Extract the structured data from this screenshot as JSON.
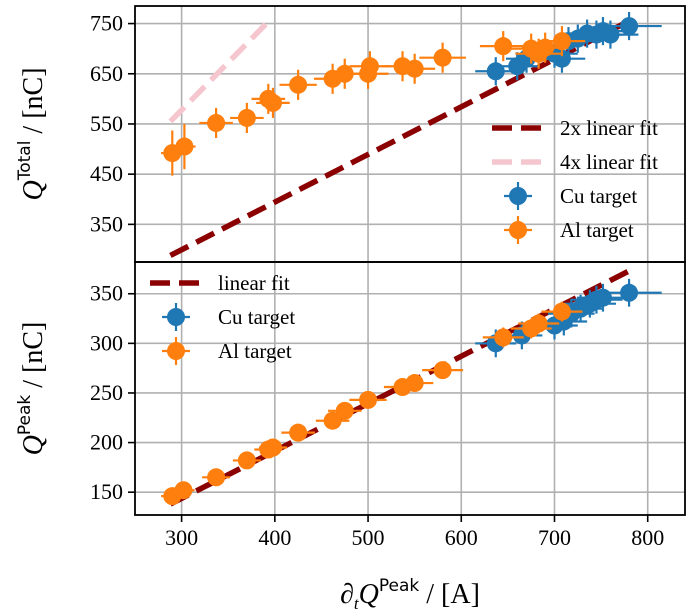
{
  "chart_data": [
    {
      "type": "scatter",
      "panel": "top",
      "xlim": [
        250,
        840
      ],
      "ylim": [
        275,
        785
      ],
      "xticks": [
        300,
        400,
        500,
        600,
        700,
        800
      ],
      "yticks": [
        350,
        450,
        550,
        650,
        750
      ],
      "ytick_labels": [
        "350",
        "450",
        "550",
        "650",
        "750"
      ],
      "grid": true,
      "ylabel": {
        "symbol": "Q",
        "sup": "Total",
        "unit": " / [nC]"
      },
      "legend_position": "lower-right",
      "series": [
        {
          "name": "Cu target",
          "kind": "points",
          "color": "#1f77b4",
          "points": [
            {
              "x": 637,
              "y": 655,
              "xerr": 22,
              "yerr": 28
            },
            {
              "x": 660,
              "y": 665,
              "xerr": 22,
              "yerr": 28
            },
            {
              "x": 670,
              "y": 680,
              "xerr": 22,
              "yerr": 28
            },
            {
              "x": 700,
              "y": 690,
              "xerr": 25,
              "yerr": 28
            },
            {
              "x": 708,
              "y": 680,
              "xerr": 25,
              "yerr": 28
            },
            {
              "x": 715,
              "y": 715,
              "xerr": 25,
              "yerr": 28
            },
            {
              "x": 725,
              "y": 720,
              "xerr": 25,
              "yerr": 28
            },
            {
              "x": 735,
              "y": 730,
              "xerr": 28,
              "yerr": 28
            },
            {
              "x": 745,
              "y": 728,
              "xerr": 28,
              "yerr": 28
            },
            {
              "x": 752,
              "y": 735,
              "xerr": 28,
              "yerr": 28
            },
            {
              "x": 760,
              "y": 728,
              "xerr": 30,
              "yerr": 28
            },
            {
              "x": 780,
              "y": 745,
              "xerr": 35,
              "yerr": 28
            }
          ]
        },
        {
          "name": "Al target",
          "kind": "points",
          "color": "#ff7f0e",
          "points": [
            {
              "x": 290,
              "y": 492,
              "xerr": 12,
              "yerr": 45
            },
            {
              "x": 303,
              "y": 505,
              "xerr": 12,
              "yerr": 45
            },
            {
              "x": 337,
              "y": 552,
              "xerr": 18,
              "yerr": 30
            },
            {
              "x": 370,
              "y": 562,
              "xerr": 18,
              "yerr": 30
            },
            {
              "x": 393,
              "y": 600,
              "xerr": 18,
              "yerr": 30
            },
            {
              "x": 398,
              "y": 592,
              "xerr": 18,
              "yerr": 30
            },
            {
              "x": 425,
              "y": 628,
              "xerr": 20,
              "yerr": 30
            },
            {
              "x": 462,
              "y": 640,
              "xerr": 20,
              "yerr": 30
            },
            {
              "x": 475,
              "y": 650,
              "xerr": 20,
              "yerr": 30
            },
            {
              "x": 500,
              "y": 650,
              "xerr": 22,
              "yerr": 30
            },
            {
              "x": 502,
              "y": 665,
              "xerr": 22,
              "yerr": 30
            },
            {
              "x": 537,
              "y": 665,
              "xerr": 22,
              "yerr": 30
            },
            {
              "x": 550,
              "y": 660,
              "xerr": 22,
              "yerr": 30
            },
            {
              "x": 580,
              "y": 682,
              "xerr": 25,
              "yerr": 30
            },
            {
              "x": 645,
              "y": 705,
              "xerr": 25,
              "yerr": 30
            },
            {
              "x": 675,
              "y": 700,
              "xerr": 25,
              "yerr": 30
            },
            {
              "x": 683,
              "y": 690,
              "xerr": 25,
              "yerr": 30
            },
            {
              "x": 690,
              "y": 702,
              "xerr": 25,
              "yerr": 30
            },
            {
              "x": 708,
              "y": 715,
              "xerr": 25,
              "yerr": 30
            }
          ]
        },
        {
          "name": "2x linear fit",
          "kind": "line",
          "color": "#8b0000",
          "width": 5.5,
          "dash": "20 9",
          "x": [
            288,
            780
          ],
          "y": [
            288,
            755
          ]
        },
        {
          "name": "4x linear fit",
          "kind": "line",
          "color": "#f6c6cf",
          "width": 5.5,
          "dash": "20 9",
          "x": [
            288,
            392
          ],
          "y": [
            555,
            752
          ]
        }
      ]
    },
    {
      "type": "scatter",
      "panel": "bottom",
      "xlim": [
        250,
        840
      ],
      "ylim": [
        127,
        382
      ],
      "xticks": [
        300,
        400,
        500,
        600,
        700,
        800
      ],
      "xtick_labels": [
        "300",
        "400",
        "500",
        "600",
        "700",
        "800"
      ],
      "yticks": [
        150,
        200,
        250,
        300,
        350
      ],
      "ytick_labels": [
        "150",
        "200",
        "250",
        "300",
        "350"
      ],
      "grid": true,
      "ylabel": {
        "symbol": "Q",
        "sup": "Peak",
        "unit": " / [nC]"
      },
      "xlabel": {
        "prefix": "∂",
        "sub": "t",
        "symbol": "Q",
        "sup": "Peak",
        "unit": " / [A]"
      },
      "legend_position": "upper-left",
      "series": [
        {
          "name": "Cu target",
          "kind": "points",
          "color": "#1f77b4",
          "points": [
            {
              "x": 637,
              "y": 300,
              "xerr": 22,
              "yerr": 14
            },
            {
              "x": 665,
              "y": 308,
              "xerr": 22,
              "yerr": 14
            },
            {
              "x": 700,
              "y": 318,
              "xerr": 25,
              "yerr": 14
            },
            {
              "x": 710,
              "y": 322,
              "xerr": 25,
              "yerr": 14
            },
            {
              "x": 718,
              "y": 330,
              "xerr": 25,
              "yerr": 14
            },
            {
              "x": 728,
              "y": 335,
              "xerr": 25,
              "yerr": 14
            },
            {
              "x": 738,
              "y": 340,
              "xerr": 28,
              "yerr": 14
            },
            {
              "x": 745,
              "y": 344,
              "xerr": 28,
              "yerr": 14
            },
            {
              "x": 752,
              "y": 346,
              "xerr": 28,
              "yerr": 14
            },
            {
              "x": 780,
              "y": 351,
              "xerr": 35,
              "yerr": 14
            }
          ]
        },
        {
          "name": "Al target",
          "kind": "points",
          "color": "#ff7f0e",
          "points": [
            {
              "x": 290,
              "y": 146,
              "xerr": 12,
              "yerr": 6
            },
            {
              "x": 302,
              "y": 152,
              "xerr": 12,
              "yerr": 6
            },
            {
              "x": 337,
              "y": 165,
              "xerr": 15,
              "yerr": 6
            },
            {
              "x": 370,
              "y": 182,
              "xerr": 15,
              "yerr": 6
            },
            {
              "x": 393,
              "y": 193,
              "xerr": 15,
              "yerr": 6
            },
            {
              "x": 398,
              "y": 195,
              "xerr": 15,
              "yerr": 6
            },
            {
              "x": 425,
              "y": 210,
              "xerr": 18,
              "yerr": 6
            },
            {
              "x": 462,
              "y": 222,
              "xerr": 18,
              "yerr": 6
            },
            {
              "x": 475,
              "y": 232,
              "xerr": 18,
              "yerr": 6
            },
            {
              "x": 500,
              "y": 243,
              "xerr": 20,
              "yerr": 6
            },
            {
              "x": 537,
              "y": 256,
              "xerr": 20,
              "yerr": 6
            },
            {
              "x": 550,
              "y": 260,
              "xerr": 20,
              "yerr": 6
            },
            {
              "x": 580,
              "y": 273,
              "xerr": 22,
              "yerr": 6
            },
            {
              "x": 645,
              "y": 306,
              "xerr": 22,
              "yerr": 10
            },
            {
              "x": 675,
              "y": 315,
              "xerr": 22,
              "yerr": 10
            },
            {
              "x": 683,
              "y": 320,
              "xerr": 22,
              "yerr": 10
            },
            {
              "x": 708,
              "y": 332,
              "xerr": 22,
              "yerr": 10
            }
          ]
        },
        {
          "name": "linear fit",
          "kind": "line",
          "color": "#8b0000",
          "width": 5.5,
          "dash": "20 9",
          "x": [
            288,
            780
          ],
          "y": [
            138,
            373
          ]
        }
      ]
    }
  ]
}
